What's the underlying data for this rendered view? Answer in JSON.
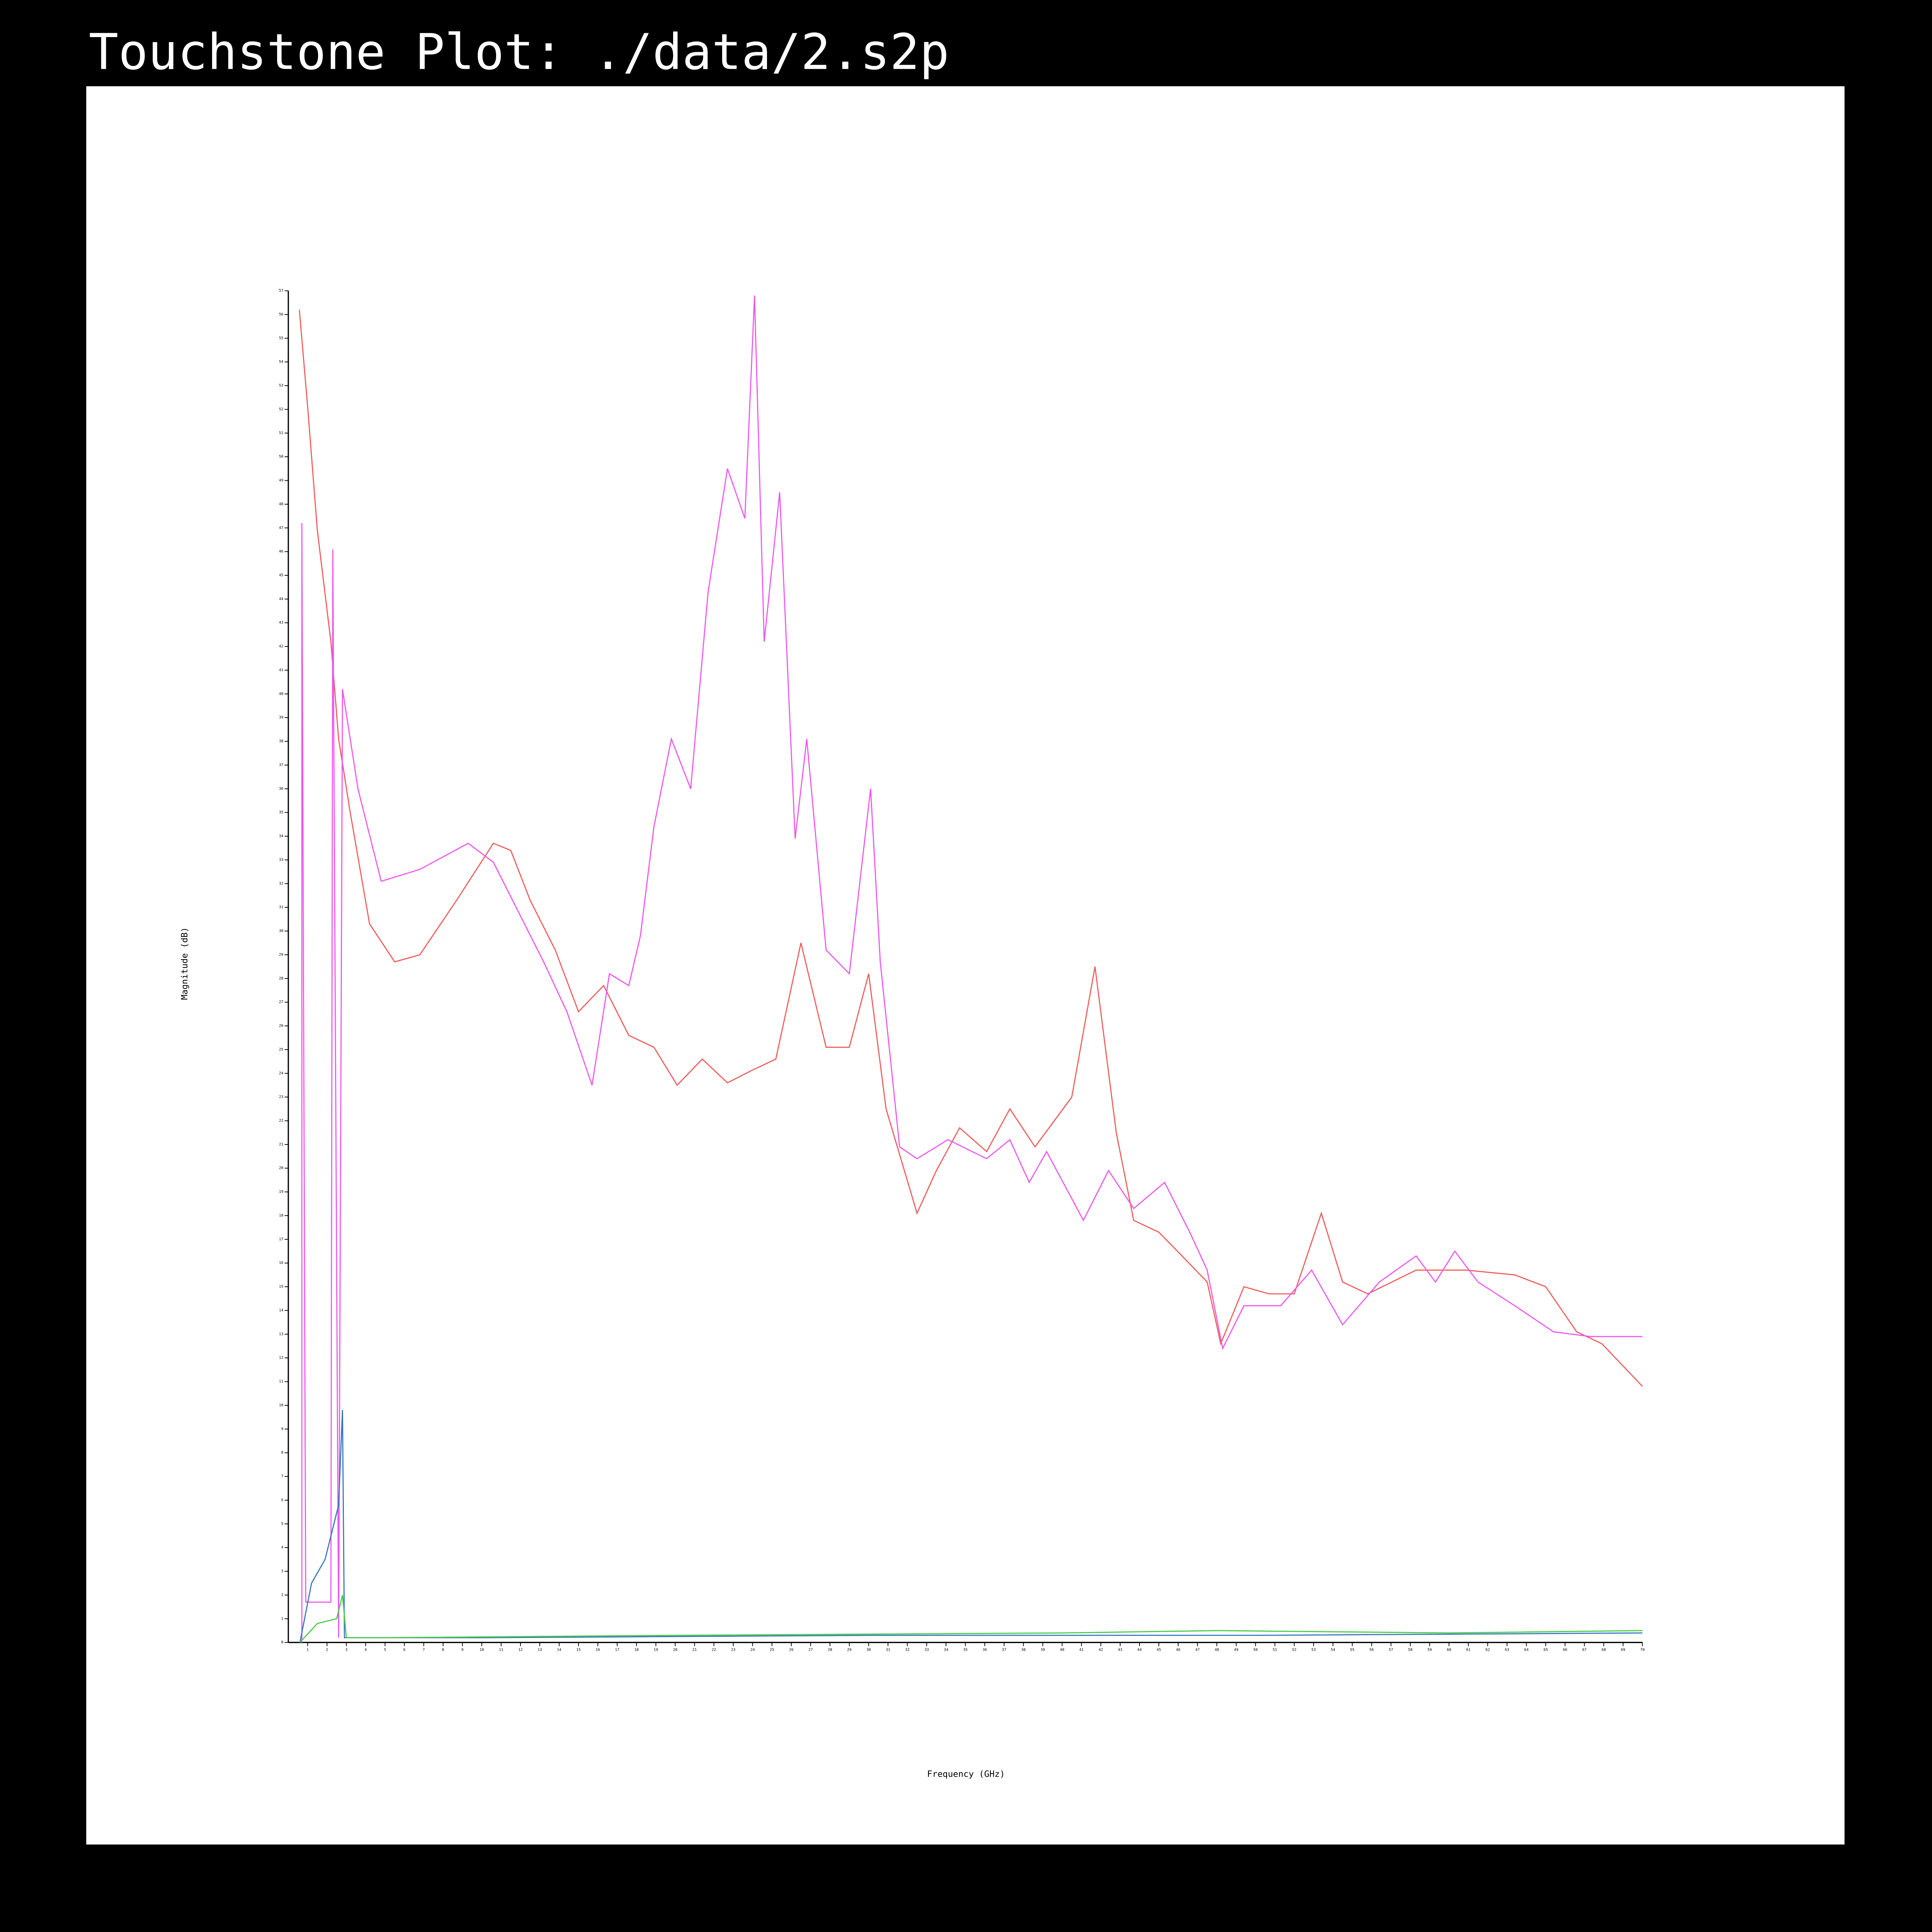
{
  "chart_data": {
    "type": "line",
    "title": "Touchstone Plot: ./data/2.s2p",
    "x_label": "Frequency (GHz)",
    "y_label": "Magnitude (dB)",
    "xlim": [
      0,
      70
    ],
    "ylim": [
      0,
      57
    ],
    "xticks": [
      1,
      2,
      3,
      4,
      5,
      6,
      7,
      8,
      9,
      10,
      11,
      12,
      13,
      14,
      15,
      16,
      17,
      18,
      19,
      20,
      21,
      22,
      23,
      24,
      25,
      26,
      27,
      28,
      29,
      30,
      31,
      32,
      33,
      34,
      35,
      36,
      37,
      38,
      39,
      40,
      41,
      42,
      43,
      44,
      45,
      46,
      47,
      48,
      49,
      50,
      51,
      52,
      53,
      54,
      55,
      56,
      57,
      58,
      59,
      60,
      61,
      62,
      63,
      64,
      65,
      66,
      67,
      68,
      69,
      70
    ],
    "yticks": [
      0,
      1,
      2,
      3,
      4,
      5,
      6,
      7,
      8,
      9,
      10,
      11,
      12,
      13,
      14,
      15,
      16,
      17,
      18,
      19,
      20,
      21,
      22,
      23,
      24,
      25,
      26,
      27,
      28,
      29,
      30,
      31,
      32,
      33,
      34,
      35,
      36,
      37,
      38,
      39,
      40,
      41,
      42,
      43,
      44,
      45,
      46,
      47,
      48,
      49,
      50,
      51,
      52,
      53,
      54,
      55,
      56,
      57
    ],
    "series": [
      {
        "color": "#f05a5a",
        "x": [
          0.57,
          1.0,
          1.5,
          2.2,
          2.6,
          3.2,
          4.2,
          5.5,
          6.8,
          8.7,
          10.6,
          11.5,
          12.5,
          13.8,
          15.0,
          16.3,
          17.6,
          18.9,
          20.1,
          21.4,
          22.7,
          23.9,
          25.2,
          26.5,
          27.8,
          29.0,
          30.0,
          30.9,
          32.5,
          33.5,
          34.7,
          36.1,
          37.3,
          38.6,
          40.5,
          41.7,
          42.8,
          43.7,
          45.0,
          46.2,
          47.5,
          48.2,
          49.4,
          50.7,
          52.0,
          53.4,
          54.5,
          55.8,
          58.3,
          60.9,
          63.4,
          65.0,
          66.6,
          67.9,
          70.0
        ],
        "values": [
          56.2,
          52.1,
          46.9,
          42.2,
          38.1,
          35.0,
          30.3,
          28.7,
          29.0,
          31.3,
          33.7,
          33.4,
          31.3,
          29.2,
          26.6,
          27.7,
          25.6,
          25.1,
          23.5,
          24.6,
          23.6,
          24.1,
          24.6,
          29.5,
          25.1,
          25.1,
          28.2,
          22.5,
          18.1,
          19.9,
          21.7,
          20.7,
          22.5,
          20.9,
          23.0,
          28.5,
          21.5,
          17.8,
          17.3,
          16.3,
          15.2,
          12.6,
          15.0,
          14.7,
          14.7,
          18.1,
          15.2,
          14.7,
          15.7,
          15.7,
          15.5,
          15.0,
          13.1,
          12.6,
          10.8
        ]
      },
      {
        "color": "#ee55ee",
        "x": [
          0.7,
          0.7,
          0.9,
          2.2,
          2.3,
          2.6,
          2.8,
          3.6,
          4.8,
          6.8,
          9.3,
          10.6,
          11.9,
          13.2,
          14.4,
          15.7,
          16.6,
          17.6,
          18.2,
          18.9,
          19.8,
          20.8,
          21.7,
          22.7,
          23.6,
          24.1,
          24.6,
          25.4,
          26.2,
          26.8,
          27.8,
          29.0,
          30.1,
          30.6,
          31.6,
          32.5,
          34.1,
          36.1,
          37.3,
          38.3,
          39.2,
          41.1,
          42.4,
          43.7,
          45.3,
          46.6,
          47.5,
          48.3,
          49.4,
          51.3,
          52.9,
          54.5,
          56.4,
          58.3,
          59.3,
          60.3,
          61.5,
          63.4,
          65.4,
          67.3,
          70.0
        ],
        "values": [
          0,
          47.2,
          1.7,
          1.7,
          46.1,
          0.2,
          40.2,
          36.0,
          32.1,
          32.6,
          33.7,
          32.9,
          30.8,
          28.7,
          26.6,
          23.5,
          28.2,
          27.7,
          29.8,
          34.4,
          38.1,
          36.0,
          44.3,
          49.5,
          47.4,
          56.8,
          42.2,
          48.5,
          33.9,
          38.1,
          29.2,
          28.2,
          36.0,
          28.7,
          20.9,
          20.4,
          21.2,
          20.4,
          21.2,
          19.4,
          20.7,
          17.8,
          19.9,
          18.3,
          19.4,
          17.3,
          15.7,
          12.4,
          14.2,
          14.2,
          15.7,
          13.4,
          15.2,
          16.3,
          15.2,
          16.5,
          15.2,
          14.2,
          13.1,
          12.9,
          12.9
        ]
      },
      {
        "color": "#3377bb",
        "x": [
          0.6,
          1.2,
          1.9,
          2.6,
          2.8,
          2.9,
          10,
          30,
          50,
          70
        ],
        "values": [
          0,
          2.5,
          3.5,
          5.8,
          9.8,
          0.2,
          0.2,
          0.3,
          0.3,
          0.4
        ]
      },
      {
        "color": "#44cc44",
        "x": [
          0.6,
          1.5,
          2.5,
          2.8,
          3,
          5,
          20,
          40,
          48,
          60,
          70
        ],
        "values": [
          0,
          0.8,
          1.0,
          2.0,
          0.2,
          0.2,
          0.3,
          0.4,
          0.5,
          0.4,
          0.5
        ]
      }
    ]
  }
}
